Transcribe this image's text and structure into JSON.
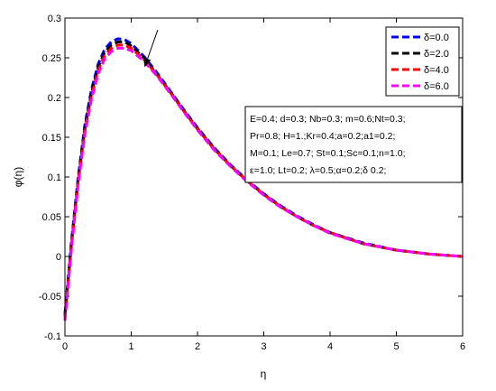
{
  "chart_data": {
    "type": "line",
    "xlabel": "η",
    "ylabel": "φ(η)",
    "xlim": [
      0,
      6
    ],
    "ylim": [
      -0.1,
      0.3
    ],
    "xticks": [
      0,
      1,
      2,
      3,
      4,
      5,
      6
    ],
    "xtick_labels": [
      "0",
      "1",
      "2",
      "3",
      "4",
      "5",
      "6"
    ],
    "yticks": [
      -0.1,
      -0.05,
      0,
      0.05,
      0.1,
      0.15,
      0.2,
      0.25,
      0.3
    ],
    "ytick_labels": [
      "-0.1",
      "-0.05",
      "0",
      "0.05",
      "0.1",
      "0.15",
      "0.2",
      "0.25",
      "0.3"
    ],
    "grid": false,
    "legend_position": "top-right",
    "line_style": "dashed",
    "x": [
      0,
      0.1,
      0.2,
      0.3,
      0.4,
      0.5,
      0.6,
      0.7,
      0.8,
      0.9,
      1.0,
      1.2,
      1.4,
      1.6,
      1.8,
      2.0,
      2.25,
      2.5,
      2.75,
      3.0,
      3.25,
      3.5,
      3.75,
      4.0,
      4.5,
      5.0,
      5.5,
      6.0
    ],
    "series": [
      {
        "name": "δ=0.0",
        "color": "#0000ff",
        "values": [
          -0.072,
          0.02,
          0.1,
          0.165,
          0.21,
          0.242,
          0.261,
          0.27,
          0.274,
          0.273,
          0.268,
          0.251,
          0.23,
          0.207,
          0.184,
          0.162,
          0.137,
          0.115,
          0.096,
          0.079,
          0.064,
          0.051,
          0.04,
          0.03,
          0.017,
          0.008,
          0.003,
          0.0
        ]
      },
      {
        "name": "δ=2.0",
        "color": "#000000",
        "values": [
          -0.075,
          0.017,
          0.097,
          0.161,
          0.206,
          0.238,
          0.257,
          0.266,
          0.27,
          0.27,
          0.265,
          0.249,
          0.228,
          0.206,
          0.183,
          0.161,
          0.136,
          0.114,
          0.095,
          0.078,
          0.063,
          0.05,
          0.039,
          0.03,
          0.016,
          0.008,
          0.003,
          0.0
        ]
      },
      {
        "name": "δ=4.0",
        "color": "#ff0000",
        "values": [
          -0.078,
          0.014,
          0.094,
          0.157,
          0.202,
          0.234,
          0.253,
          0.262,
          0.266,
          0.266,
          0.262,
          0.247,
          0.227,
          0.205,
          0.182,
          0.16,
          0.135,
          0.114,
          0.095,
          0.078,
          0.063,
          0.05,
          0.039,
          0.03,
          0.016,
          0.008,
          0.003,
          0.0
        ]
      },
      {
        "name": "δ=6.0",
        "color": "#ff00ff",
        "values": [
          -0.081,
          0.011,
          0.091,
          0.153,
          0.198,
          0.23,
          0.249,
          0.258,
          0.262,
          0.262,
          0.259,
          0.245,
          0.226,
          0.204,
          0.181,
          0.159,
          0.134,
          0.113,
          0.094,
          0.077,
          0.062,
          0.05,
          0.039,
          0.029,
          0.016,
          0.008,
          0.003,
          0.0
        ]
      }
    ],
    "annotation_lines": [
      "E=0.4; d=0.3; Nb=0.3; m=0.6;Nt=0.3;",
      "Pr=0.8; H=1.;Kr=0.4;a=0.2;a1=0.2;",
      "M=0.1; Le=0.7; St=0.1;Sc=0.1;n=1.0;",
      "ε=1.0; Lt=0.2; λ=0.5;α=0.2;δ 0.2;"
    ],
    "arrow": {
      "from": [
        1.4,
        0.285
      ],
      "to": [
        1.2,
        0.238
      ]
    }
  }
}
